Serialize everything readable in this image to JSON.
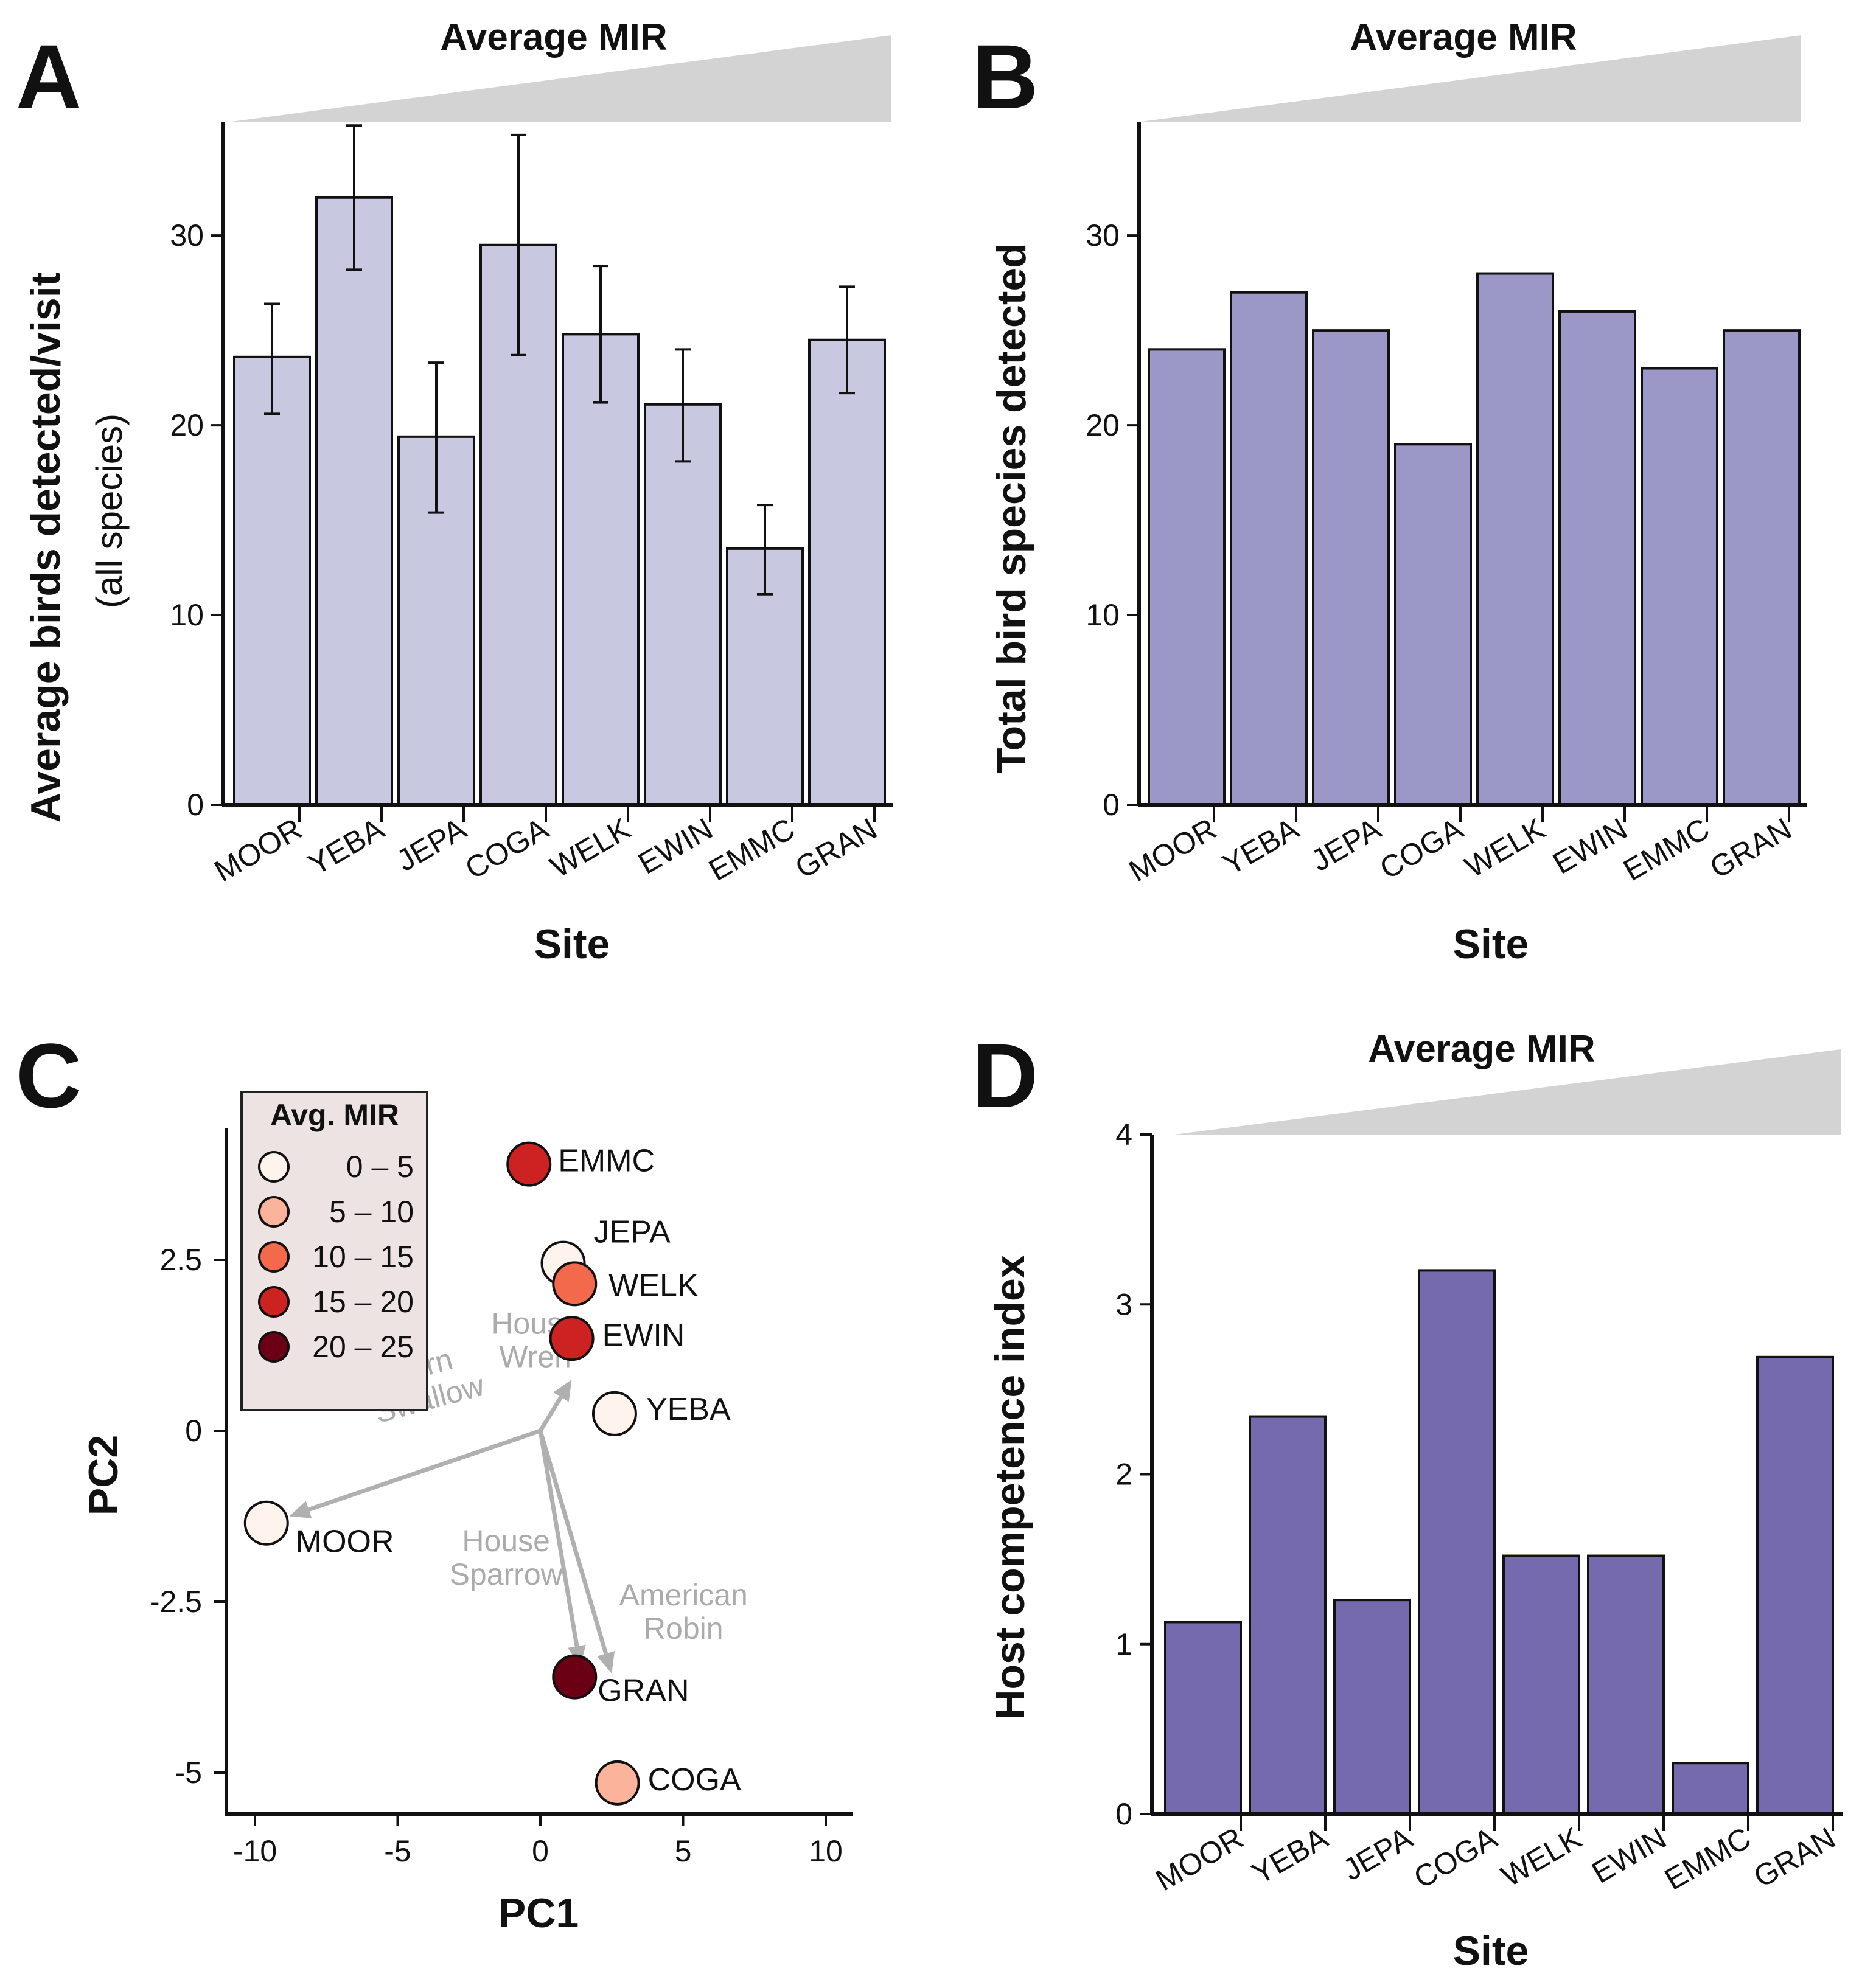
{
  "panels": {
    "A": {
      "letter": "A",
      "mir_title": "Average MIR",
      "ylabel": "Average birds detected/visit",
      "ylabel_sub": "(all species)",
      "xlabel": "Site",
      "bar_color": "#c8c8e1"
    },
    "B": {
      "letter": "B",
      "mir_title": "Average MIR",
      "ylabel": "Total bird species detected",
      "xlabel": "Site",
      "bar_color": "#9b98c8"
    },
    "C": {
      "letter": "C",
      "xlabel": "PC1",
      "ylabel": "PC2",
      "legend_title": "Avg. MIR"
    },
    "D": {
      "letter": "D",
      "mir_title": "Average MIR",
      "ylabel": "Host competence index",
      "xlabel": "Site",
      "bar_color": "#756aae"
    }
  },
  "chart_data": [
    {
      "id": "A",
      "type": "bar",
      "title": "Average MIR",
      "categories": [
        "MOOR",
        "YEBA",
        "JEPA",
        "COGA",
        "WELK",
        "EWIN",
        "EMMC",
        "GRAN"
      ],
      "values": [
        23.6,
        32.0,
        19.4,
        29.5,
        24.8,
        21.1,
        13.5,
        24.5
      ],
      "error_low": [
        20.6,
        28.2,
        15.4,
        23.7,
        21.2,
        18.1,
        11.1,
        21.7
      ],
      "error_high": [
        26.4,
        35.8,
        23.3,
        35.3,
        28.4,
        24.0,
        15.8,
        27.3
      ],
      "xlabel": "Site",
      "ylabel": "Average birds detected/visit (all species)",
      "ylim": [
        0,
        36
      ],
      "yticks": [
        0,
        10,
        20,
        30
      ]
    },
    {
      "id": "B",
      "type": "bar",
      "title": "Average MIR",
      "categories": [
        "MOOR",
        "YEBA",
        "JEPA",
        "COGA",
        "WELK",
        "EWIN",
        "EMMC",
        "GRAN"
      ],
      "values": [
        24,
        27,
        25,
        19,
        28,
        26,
        23,
        25
      ],
      "xlabel": "Site",
      "ylabel": "Total bird species detected",
      "ylim": [
        0,
        36
      ],
      "yticks": [
        0,
        10,
        20,
        30
      ]
    },
    {
      "id": "C",
      "type": "scatter",
      "xlabel": "PC1",
      "ylabel": "PC2",
      "xlim": [
        -11,
        11
      ],
      "ylim": [
        -5.5,
        4.5
      ],
      "xticks": [
        -10,
        -5,
        0,
        5,
        10
      ],
      "yticks": [
        -5,
        -2.5,
        0,
        2.5
      ],
      "xtick_labels": [
        "-10",
        "-5",
        "0",
        "5",
        "10"
      ],
      "ytick_labels": [
        "-5",
        "-2.5",
        "0",
        "2.5"
      ],
      "points": [
        {
          "label": "EMMC",
          "x": -0.4,
          "y": 3.9,
          "mir": "15 – 20",
          "color": "#cc2222"
        },
        {
          "label": "JEPA",
          "x": 0.8,
          "y": 2.45,
          "mir": "0 – 5",
          "color": "#fff3ee"
        },
        {
          "label": "WELK",
          "x": 1.2,
          "y": 2.15,
          "mir": "10 – 15",
          "color": "#f26a4b"
        },
        {
          "label": "EWIN",
          "x": 1.1,
          "y": 1.35,
          "mir": "15 – 20",
          "color": "#cc2222"
        },
        {
          "label": "YEBA",
          "x": 2.6,
          "y": 0.25,
          "mir": "0 – 5",
          "color": "#fff3ee"
        },
        {
          "label": "MOOR",
          "x": -9.6,
          "y": -1.35,
          "mir": "0 – 5",
          "color": "#fff3ee"
        },
        {
          "label": "GRAN",
          "x": 1.2,
          "y": -3.6,
          "mir": "20 – 25",
          "color": "#6b0014"
        },
        {
          "label": "COGA",
          "x": 2.7,
          "y": -5.15,
          "mir": "5 – 10",
          "color": "#fbb49b"
        }
      ],
      "loadings": [
        {
          "label1": "House",
          "label2": "Wren",
          "x": 1.1,
          "y": 0.75
        },
        {
          "label1": "Barn",
          "label2": "Swallow",
          "x": -8.8,
          "y": -1.25
        },
        {
          "label1": "House",
          "label2": "Sparrow",
          "x": 1.4,
          "y": -3.45
        },
        {
          "label1": "American",
          "label2": "Robin",
          "x": 2.5,
          "y": -3.55
        }
      ],
      "legend": {
        "title": "Avg. MIR",
        "entries": [
          {
            "label": "0 – 5",
            "color": "#fff3ee"
          },
          {
            "label": "5 – 10",
            "color": "#fbb49b"
          },
          {
            "label": "10 – 15",
            "color": "#f26a4b"
          },
          {
            "label": "15 – 20",
            "color": "#cc2222"
          },
          {
            "label": "20 – 25",
            "color": "#6b0014"
          }
        ]
      }
    },
    {
      "id": "D",
      "type": "bar",
      "title": "Average MIR",
      "categories": [
        "MOOR",
        "YEBA",
        "JEPA",
        "COGA",
        "WELK",
        "EWIN",
        "EMMC",
        "GRAN"
      ],
      "values": [
        1.13,
        2.34,
        1.26,
        3.2,
        1.52,
        1.52,
        0.3,
        2.69
      ],
      "xlabel": "Site",
      "ylabel": "Host competence index",
      "ylim": [
        0,
        4
      ],
      "yticks": [
        0,
        1,
        2,
        3,
        4
      ]
    }
  ]
}
